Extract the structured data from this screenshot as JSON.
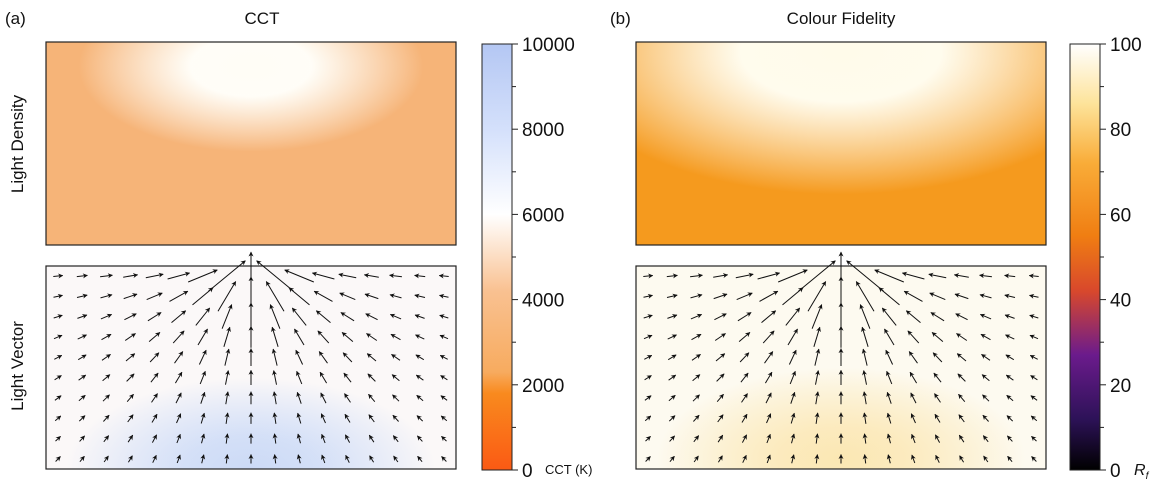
{
  "chart_data": [
    {
      "type": "heatmap",
      "panel_label": "(a)",
      "title": "CCT",
      "row_labels": [
        "Light Density",
        "Light Vector"
      ],
      "colorbar": {
        "range": [
          0,
          10000
        ],
        "ticks": [
          0,
          2000,
          4000,
          6000,
          8000,
          10000
        ],
        "tick_labels": [
          "0",
          "2000",
          "4000",
          "6000",
          "8000",
          "10000"
        ],
        "unit_label": "CCT (K)",
        "stops": [
          {
            "value": 0,
            "color": "#fa5a14"
          },
          {
            "value": 1800,
            "color": "#f98a1e"
          },
          {
            "value": 2300,
            "color": "#f7ab5f"
          },
          {
            "value": 4200,
            "color": "#f9c191"
          },
          {
            "value": 6000,
            "color": "#ffffff"
          },
          {
            "value": 8000,
            "color": "#d4e0fb"
          },
          {
            "value": 10000,
            "color": "#b4c7f3"
          }
        ]
      },
      "density_map": {
        "background": "#f6b478",
        "hotspot": "#fffdf6"
      },
      "vector_map": {
        "background": "#fbf8f8",
        "hotspot": "#ccdaf6",
        "arrow_color": "#111111"
      }
    },
    {
      "type": "heatmap",
      "panel_label": "(b)",
      "title": "Colour Fidelity",
      "row_labels": [],
      "colorbar": {
        "range": [
          0,
          100
        ],
        "ticks": [
          0,
          20,
          40,
          60,
          80,
          100
        ],
        "tick_labels": [
          "0",
          "20",
          "40",
          "60",
          "80",
          "100"
        ],
        "unit_label": "R",
        "unit_subscript": "f",
        "stops": [
          {
            "value": 0,
            "color": "#000000"
          },
          {
            "value": 12,
            "color": "#2d1258"
          },
          {
            "value": 27,
            "color": "#6b1b8c"
          },
          {
            "value": 42,
            "color": "#d8482c"
          },
          {
            "value": 55,
            "color": "#f07e12"
          },
          {
            "value": 72,
            "color": "#f9ac38"
          },
          {
            "value": 86,
            "color": "#fde39a"
          },
          {
            "value": 100,
            "color": "#ffffff"
          }
        ]
      },
      "density_map": {
        "background": "#f59a1e",
        "hotspot": "#fffbea"
      },
      "vector_map": {
        "background": "#fdfaf0",
        "hotspot": "#fbe7b3",
        "arrow_color": "#111111"
      }
    }
  ]
}
